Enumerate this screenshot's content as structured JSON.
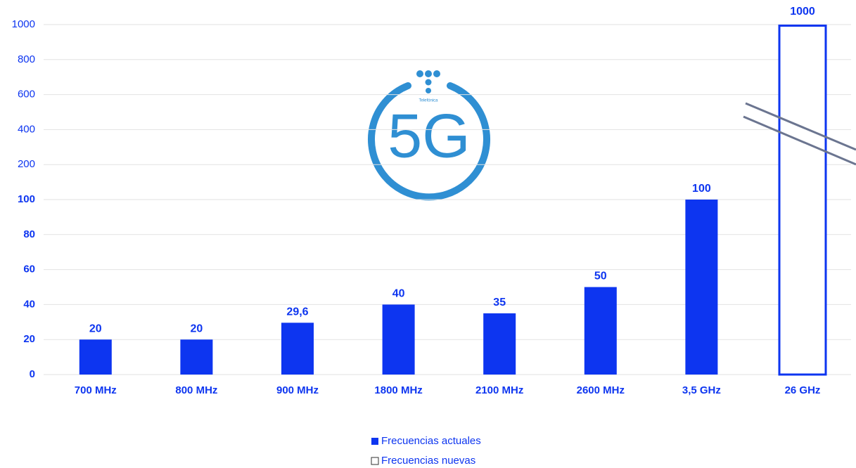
{
  "chart_data": {
    "type": "bar",
    "categories": [
      "700 MHz",
      "800 MHz",
      "900 MHz",
      "1800 MHz",
      "2100 MHz",
      "2600 MHz",
      "3,5 GHz",
      "26 GHz"
    ],
    "series": [
      {
        "name": "Frecuencias actuales",
        "color": "#0d35f0",
        "fill": true,
        "values": [
          20,
          20,
          29.6,
          40,
          35,
          50,
          100,
          null
        ],
        "value_labels": [
          "20",
          "20",
          "29,6",
          "40",
          "35",
          "50",
          "100",
          null
        ]
      },
      {
        "name": "Frecuencias nuevas",
        "color": "#0d35f0",
        "fill": false,
        "values": [
          null,
          null,
          null,
          null,
          null,
          null,
          null,
          1000
        ]
      }
    ],
    "ylim": [
      0,
      1000
    ],
    "yticks": [
      0,
      20,
      40,
      60,
      80,
      100,
      200,
      400,
      600,
      800,
      1000
    ],
    "grid": true,
    "legend": "bottom",
    "logo": {
      "text": "5G",
      "brand": "Telefónica"
    }
  }
}
